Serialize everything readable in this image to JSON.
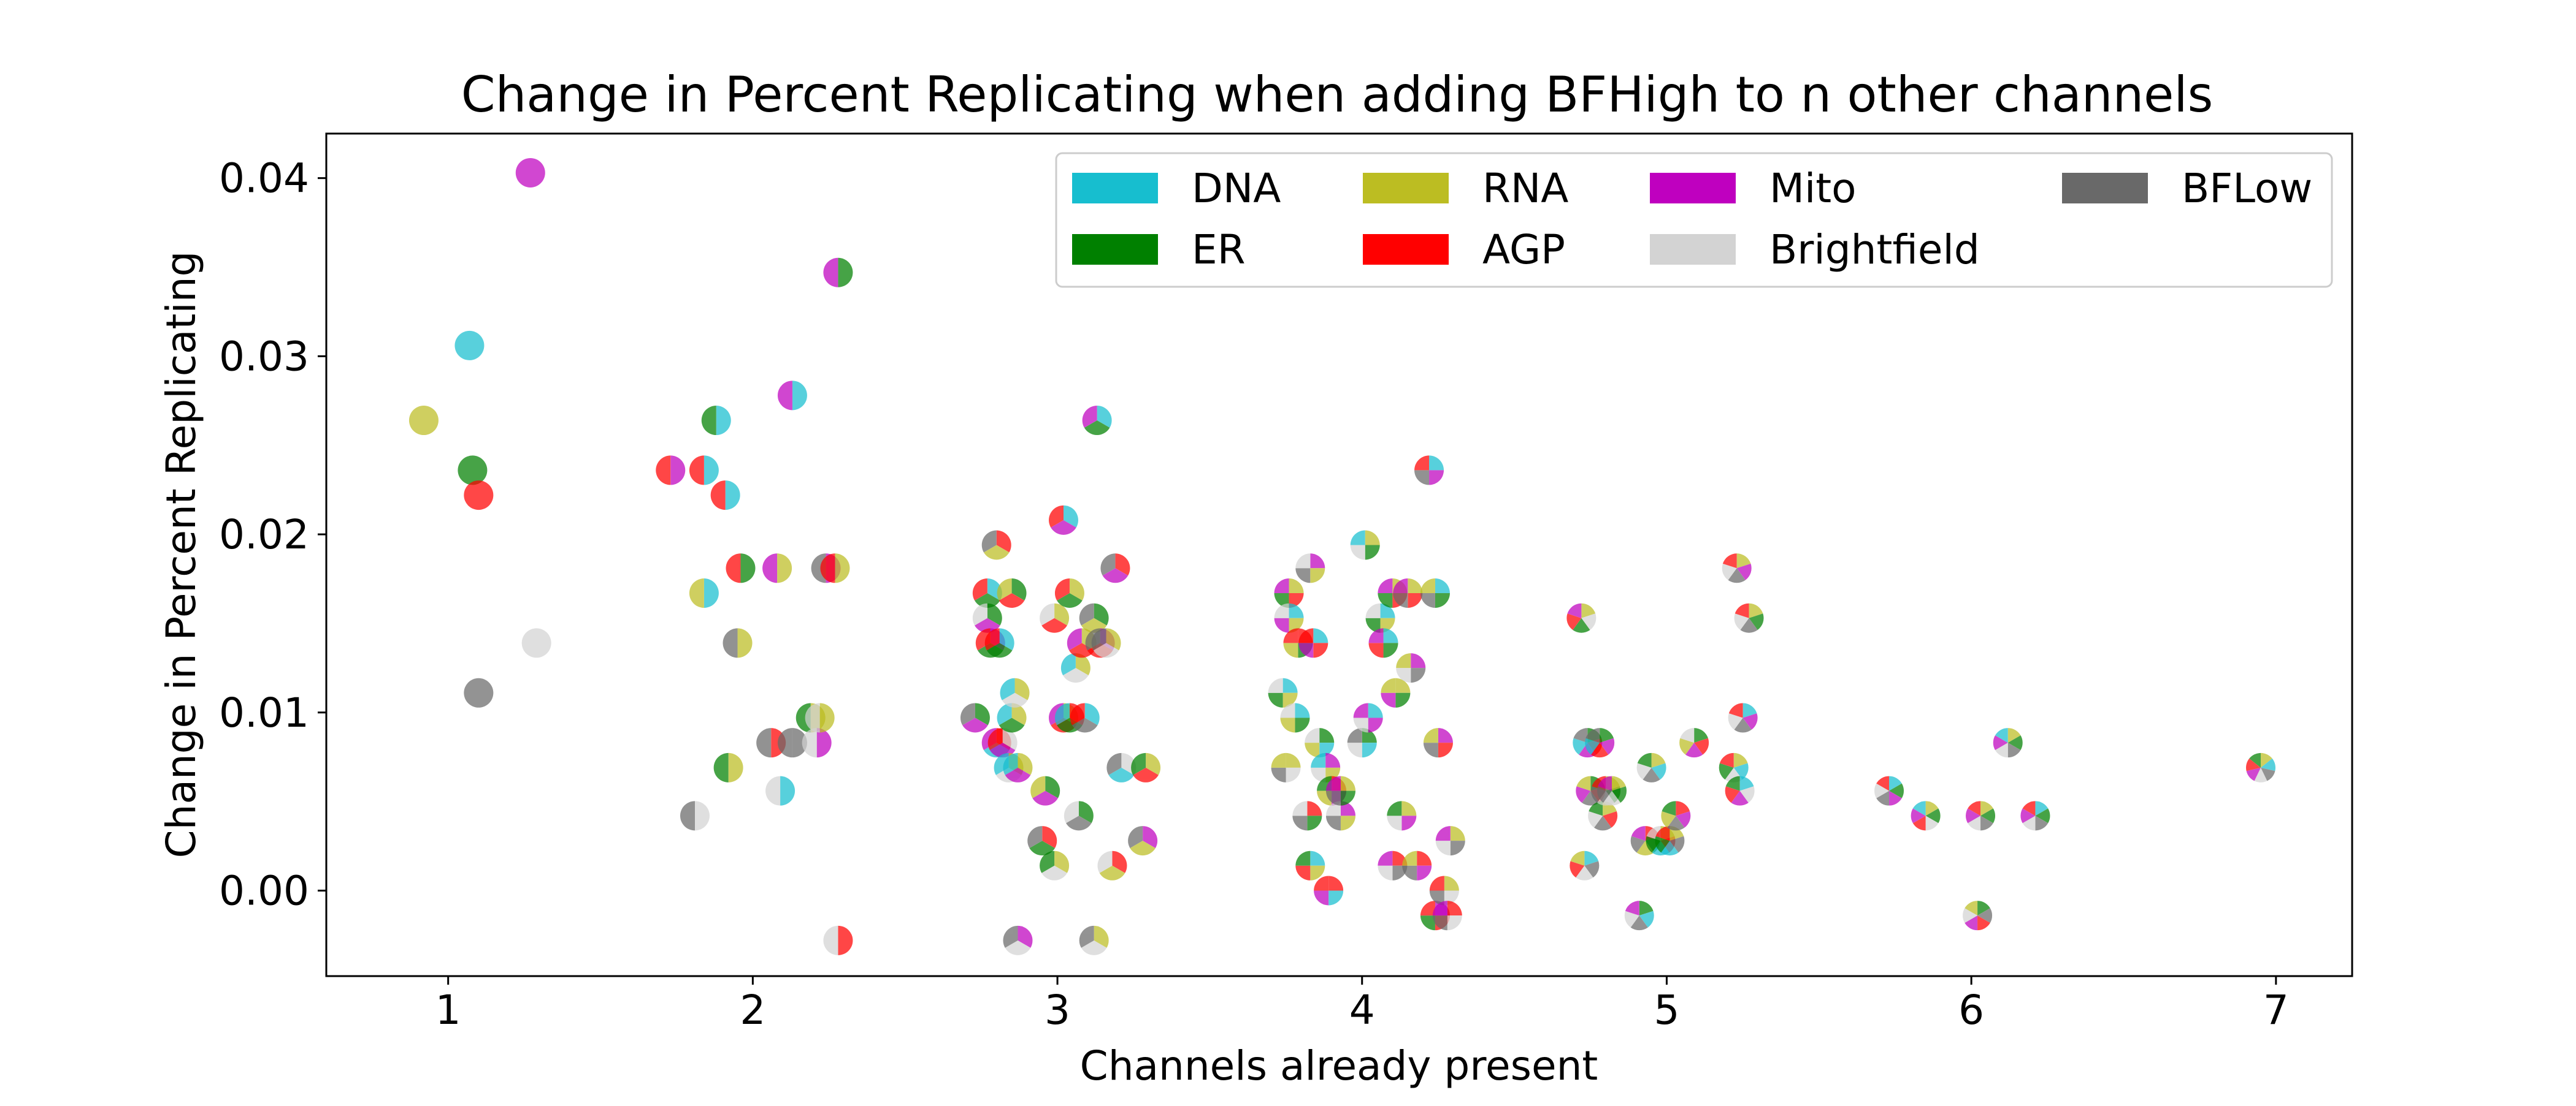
{
  "chart_data": {
    "type": "scatter",
    "title": "Change in Percent Replicating when adding BFHigh to n other channels",
    "xlabel": "Channels already present",
    "ylabel": "Change in Percent Replicating",
    "xlim": [
      0.6,
      7.25
    ],
    "ylim": [
      -0.0048,
      0.0425
    ],
    "xticks": [
      1,
      2,
      3,
      4,
      5,
      6,
      7
    ],
    "yticks": [
      0.0,
      0.01,
      0.02,
      0.03,
      0.04
    ],
    "xtick_labels": [
      "1",
      "2",
      "3",
      "4",
      "5",
      "6",
      "7"
    ],
    "ytick_labels": [
      "0.00",
      "0.01",
      "0.02",
      "0.03",
      "0.04"
    ],
    "grid": false,
    "legend_position": "top-right",
    "channels": [
      {
        "name": "DNA",
        "color": "#17becf"
      },
      {
        "name": "ER",
        "color": "#008000"
      },
      {
        "name": "RNA",
        "color": "#bcbd22"
      },
      {
        "name": "AGP",
        "color": "#ff0000"
      },
      {
        "name": "Mito",
        "color": "#bf00bf"
      },
      {
        "name": "Brightfield",
        "color": "#d3d3d3"
      },
      {
        "name": "BFLow",
        "color": "#696969"
      }
    ],
    "legend": [
      "DNA",
      "RNA",
      "Mito",
      "BFLow",
      "ER",
      "AGP",
      "Brightfield"
    ],
    "points": [
      {
        "x": 0.92,
        "y": 0.0264,
        "c": [
          "RNA"
        ]
      },
      {
        "x": 1.07,
        "y": 0.0306,
        "c": [
          "DNA"
        ]
      },
      {
        "x": 1.08,
        "y": 0.0236,
        "c": [
          "ER"
        ]
      },
      {
        "x": 1.1,
        "y": 0.0222,
        "c": [
          "AGP"
        ]
      },
      {
        "x": 1.1,
        "y": 0.0111,
        "c": [
          "BFLow"
        ]
      },
      {
        "x": 1.27,
        "y": 0.0403,
        "c": [
          "Mito"
        ]
      },
      {
        "x": 1.29,
        "y": 0.0139,
        "c": [
          "Brightfield"
        ]
      },
      {
        "x": 1.73,
        "y": 0.0236,
        "c": [
          "Mito",
          "AGP"
        ]
      },
      {
        "x": 1.81,
        "y": 0.0042,
        "c": [
          "Brightfield",
          "BFLow"
        ]
      },
      {
        "x": 1.84,
        "y": 0.0236,
        "c": [
          "DNA",
          "AGP"
        ]
      },
      {
        "x": 1.84,
        "y": 0.0167,
        "c": [
          "DNA",
          "RNA"
        ]
      },
      {
        "x": 1.88,
        "y": 0.0264,
        "c": [
          "DNA",
          "ER"
        ]
      },
      {
        "x": 1.91,
        "y": 0.0222,
        "c": [
          "DNA",
          "AGP"
        ]
      },
      {
        "x": 1.92,
        "y": 0.0069,
        "c": [
          "RNA",
          "ER"
        ]
      },
      {
        "x": 1.95,
        "y": 0.0139,
        "c": [
          "RNA",
          "BFLow"
        ]
      },
      {
        "x": 1.96,
        "y": 0.0181,
        "c": [
          "ER",
          "AGP"
        ]
      },
      {
        "x": 2.06,
        "y": 0.0083,
        "c": [
          "AGP",
          "BFLow"
        ]
      },
      {
        "x": 2.08,
        "y": 0.0181,
        "c": [
          "RNA",
          "Mito"
        ]
      },
      {
        "x": 2.09,
        "y": 0.0056,
        "c": [
          "DNA",
          "Brightfield"
        ]
      },
      {
        "x": 2.13,
        "y": 0.0083,
        "c": [
          "BFLow",
          "BFLow"
        ]
      },
      {
        "x": 2.13,
        "y": 0.0278,
        "c": [
          "DNA",
          "Mito"
        ]
      },
      {
        "x": 2.19,
        "y": 0.0097,
        "c": [
          "RNA",
          "ER"
        ]
      },
      {
        "x": 2.21,
        "y": 0.0083,
        "c": [
          "Mito",
          "Brightfield"
        ]
      },
      {
        "x": 2.22,
        "y": 0.0097,
        "c": [
          "RNA",
          "Brightfield"
        ]
      },
      {
        "x": 2.24,
        "y": 0.0181,
        "c": [
          "Mito",
          "BFLow"
        ]
      },
      {
        "x": 2.27,
        "y": 0.0181,
        "c": [
          "RNA",
          "AGP"
        ]
      },
      {
        "x": 2.28,
        "y": 0.0347,
        "c": [
          "ER",
          "Mito"
        ]
      },
      {
        "x": 2.28,
        "y": -0.0028,
        "c": [
          "AGP",
          "Brightfield"
        ]
      },
      {
        "x": 2.73,
        "y": 0.0097,
        "c": [
          "ER",
          "Mito",
          "BFLow"
        ]
      },
      {
        "x": 2.77,
        "y": 0.0167,
        "c": [
          "DNA",
          "ER",
          "AGP"
        ]
      },
      {
        "x": 2.77,
        "y": 0.0153,
        "c": [
          "ER",
          "Mito",
          "Brightfield"
        ]
      },
      {
        "x": 2.78,
        "y": 0.0139,
        "c": [
          "Mito",
          "ER",
          "AGP"
        ]
      },
      {
        "x": 2.8,
        "y": 0.0194,
        "c": [
          "AGP",
          "RNA",
          "BFLow"
        ]
      },
      {
        "x": 2.8,
        "y": 0.0083,
        "c": [
          "AGP",
          "DNA",
          "Mito"
        ]
      },
      {
        "x": 2.81,
        "y": 0.0139,
        "c": [
          "DNA",
          "ER",
          "AGP"
        ]
      },
      {
        "x": 2.82,
        "y": 0.0083,
        "c": [
          "Brightfield",
          "Mito",
          "AGP"
        ]
      },
      {
        "x": 2.84,
        "y": 0.0069,
        "c": [
          "RNA",
          "Brightfield",
          "DNA"
        ]
      },
      {
        "x": 2.85,
        "y": 0.0167,
        "c": [
          "ER",
          "AGP",
          "RNA"
        ]
      },
      {
        "x": 2.85,
        "y": 0.0097,
        "c": [
          "RNA",
          "ER",
          "DNA"
        ]
      },
      {
        "x": 2.86,
        "y": 0.0111,
        "c": [
          "RNA",
          "Brightfield",
          "DNA"
        ]
      },
      {
        "x": 2.87,
        "y": -0.0028,
        "c": [
          "Mito",
          "Brightfield",
          "BFLow"
        ]
      },
      {
        "x": 2.87,
        "y": 0.0069,
        "c": [
          "RNA",
          "Mito",
          "DNA"
        ]
      },
      {
        "x": 2.95,
        "y": 0.0028,
        "c": [
          "AGP",
          "ER",
          "BFLow"
        ]
      },
      {
        "x": 2.96,
        "y": 0.0056,
        "c": [
          "ER",
          "Mito",
          "RNA"
        ]
      },
      {
        "x": 2.99,
        "y": 0.0153,
        "c": [
          "RNA",
          "AGP",
          "Brightfield"
        ]
      },
      {
        "x": 2.99,
        "y": 0.0014,
        "c": [
          "RNA",
          "Brightfield",
          "ER"
        ]
      },
      {
        "x": 3.02,
        "y": 0.0097,
        "c": [
          "RNA",
          "AGP",
          "Mito"
        ]
      },
      {
        "x": 3.02,
        "y": 0.0208,
        "c": [
          "DNA",
          "Mito",
          "AGP"
        ]
      },
      {
        "x": 3.04,
        "y": 0.0167,
        "c": [
          "RNA",
          "ER",
          "AGP"
        ]
      },
      {
        "x": 3.04,
        "y": 0.0097,
        "c": [
          "AGP",
          "ER",
          "DNA"
        ]
      },
      {
        "x": 3.06,
        "y": 0.0125,
        "c": [
          "RNA",
          "Brightfield",
          "DNA"
        ]
      },
      {
        "x": 3.07,
        "y": 0.0042,
        "c": [
          "ER",
          "BFLow",
          "Brightfield"
        ]
      },
      {
        "x": 3.08,
        "y": 0.0139,
        "c": [
          "RNA",
          "AGP",
          "Mito"
        ]
      },
      {
        "x": 3.09,
        "y": 0.0097,
        "c": [
          "DNA",
          "BFLow",
          "AGP"
        ]
      },
      {
        "x": 3.12,
        "y": 0.0153,
        "c": [
          "ER",
          "RNA",
          "BFLow"
        ]
      },
      {
        "x": 3.12,
        "y": -0.0028,
        "c": [
          "RNA",
          "Brightfield",
          "BFLow"
        ]
      },
      {
        "x": 3.13,
        "y": 0.0264,
        "c": [
          "DNA",
          "ER",
          "Mito"
        ]
      },
      {
        "x": 3.14,
        "y": 0.0139,
        "c": [
          "Mito",
          "AGP",
          "BFLow"
        ]
      },
      {
        "x": 3.16,
        "y": 0.0139,
        "c": [
          "RNA",
          "Brightfield",
          "BFLow"
        ]
      },
      {
        "x": 3.18,
        "y": 0.0014,
        "c": [
          "AGP",
          "RNA",
          "Brightfield"
        ]
      },
      {
        "x": 3.19,
        "y": 0.0181,
        "c": [
          "AGP",
          "Mito",
          "BFLow"
        ]
      },
      {
        "x": 3.21,
        "y": 0.0069,
        "c": [
          "Brightfield",
          "DNA",
          "BFLow"
        ]
      },
      {
        "x": 3.28,
        "y": 0.0028,
        "c": [
          "Mito",
          "RNA",
          "BFLow"
        ]
      },
      {
        "x": 3.29,
        "y": 0.0069,
        "c": [
          "RNA",
          "AGP",
          "ER"
        ]
      },
      {
        "x": 3.74,
        "y": 0.0111,
        "c": [
          "DNA",
          "RNA",
          "ER",
          "Brightfield"
        ]
      },
      {
        "x": 3.75,
        "y": 0.0069,
        "c": [
          "RNA",
          "Brightfield",
          "BFLow",
          "RNA"
        ]
      },
      {
        "x": 3.76,
        "y": 0.0167,
        "c": [
          "RNA",
          "AGP",
          "ER",
          "Mito"
        ]
      },
      {
        "x": 3.76,
        "y": 0.0153,
        "c": [
          "DNA",
          "RNA",
          "Mito",
          "Brightfield"
        ]
      },
      {
        "x": 3.78,
        "y": 0.0097,
        "c": [
          "DNA",
          "ER",
          "RNA",
          "Brightfield"
        ]
      },
      {
        "x": 3.79,
        "y": 0.0139,
        "c": [
          "AGP",
          "ER",
          "RNA",
          "AGP"
        ]
      },
      {
        "x": 3.82,
        "y": 0.0042,
        "c": [
          "AGP",
          "ER",
          "BFLow",
          "Brightfield"
        ]
      },
      {
        "x": 3.83,
        "y": 0.0014,
        "c": [
          "DNA",
          "RNA",
          "AGP",
          "ER"
        ]
      },
      {
        "x": 3.83,
        "y": 0.0181,
        "c": [
          "Mito",
          "RNA",
          "BFLow",
          "Brightfield"
        ]
      },
      {
        "x": 3.84,
        "y": 0.0139,
        "c": [
          "DNA",
          "AGP",
          "Mito",
          "AGP"
        ]
      },
      {
        "x": 3.86,
        "y": 0.0083,
        "c": [
          "ER",
          "DNA",
          "RNA",
          "Brightfield"
        ]
      },
      {
        "x": 3.88,
        "y": 0.0069,
        "c": [
          "Mito",
          "RNA",
          "Brightfield",
          "DNA"
        ]
      },
      {
        "x": 3.89,
        "y": 0.0,
        "c": [
          "AGP",
          "DNA",
          "Mito",
          "AGP"
        ]
      },
      {
        "x": 3.9,
        "y": 0.0056,
        "c": [
          "AGP",
          "Mito",
          "RNA",
          "ER"
        ]
      },
      {
        "x": 3.93,
        "y": 0.0042,
        "c": [
          "Mito",
          "RNA",
          "BFLow",
          "Brightfield"
        ]
      },
      {
        "x": 3.93,
        "y": 0.0056,
        "c": [
          "RNA",
          "ER",
          "BFLow",
          "Mito"
        ]
      },
      {
        "x": 4.0,
        "y": 0.0083,
        "c": [
          "ER",
          "DNA",
          "Brightfield",
          "BFLow"
        ]
      },
      {
        "x": 4.01,
        "y": 0.0194,
        "c": [
          "RNA",
          "ER",
          "Brightfield",
          "DNA"
        ]
      },
      {
        "x": 4.02,
        "y": 0.0097,
        "c": [
          "DNA",
          "Mito",
          "Brightfield",
          "Mito"
        ]
      },
      {
        "x": 4.06,
        "y": 0.0153,
        "c": [
          "DNA",
          "RNA",
          "ER",
          "Brightfield"
        ]
      },
      {
        "x": 4.07,
        "y": 0.0139,
        "c": [
          "DNA",
          "ER",
          "AGP",
          "Mito"
        ]
      },
      {
        "x": 4.1,
        "y": 0.0167,
        "c": [
          "RNA",
          "AGP",
          "ER",
          "Mito"
        ]
      },
      {
        "x": 4.1,
        "y": 0.0014,
        "c": [
          "AGP",
          "BFLow",
          "Brightfield",
          "Mito"
        ]
      },
      {
        "x": 4.11,
        "y": 0.0111,
        "c": [
          "RNA",
          "ER",
          "Mito",
          "RNA"
        ]
      },
      {
        "x": 4.13,
        "y": 0.0042,
        "c": [
          "RNA",
          "Mito",
          "Brightfield",
          "ER"
        ]
      },
      {
        "x": 4.15,
        "y": 0.0167,
        "c": [
          "RNA",
          "AGP",
          "BFLow",
          "Mito"
        ]
      },
      {
        "x": 4.16,
        "y": 0.0125,
        "c": [
          "Mito",
          "BFLow",
          "Brightfield",
          "RNA"
        ]
      },
      {
        "x": 4.18,
        "y": 0.0014,
        "c": [
          "AGP",
          "Mito",
          "BFLow",
          "RNA"
        ]
      },
      {
        "x": 4.22,
        "y": 0.0236,
        "c": [
          "DNA",
          "Mito",
          "BFLow",
          "AGP"
        ]
      },
      {
        "x": 4.24,
        "y": 0.0167,
        "c": [
          "DNA",
          "ER",
          "BFLow",
          "RNA"
        ]
      },
      {
        "x": 4.24,
        "y": -0.0014,
        "c": [
          "Mito",
          "AGP",
          "ER",
          "AGP"
        ]
      },
      {
        "x": 4.25,
        "y": 0.0083,
        "c": [
          "Mito",
          "AGP",
          "BFLow",
          "RNA"
        ]
      },
      {
        "x": 4.27,
        "y": 0.0,
        "c": [
          "RNA",
          "Brightfield",
          "BFLow",
          "AGP"
        ]
      },
      {
        "x": 4.28,
        "y": -0.0014,
        "c": [
          "AGP",
          "Brightfield",
          "BFLow",
          "Mito"
        ]
      },
      {
        "x": 4.29,
        "y": 0.0028,
        "c": [
          "RNA",
          "BFLow",
          "Brightfield",
          "Mito"
        ]
      },
      {
        "x": 4.72,
        "y": 0.0153,
        "c": [
          "RNA",
          "Brightfield",
          "ER",
          "AGP",
          "Mito"
        ]
      },
      {
        "x": 4.73,
        "y": 0.0014,
        "c": [
          "DNA",
          "BFLow",
          "Brightfield",
          "AGP",
          "RNA"
        ]
      },
      {
        "x": 4.74,
        "y": 0.0083,
        "c": [
          "ER",
          "AGP",
          "Mito",
          "DNA",
          "BFLow"
        ]
      },
      {
        "x": 4.75,
        "y": 0.0056,
        "c": [
          "ER",
          "AGP",
          "BFLow",
          "Mito",
          "RNA"
        ]
      },
      {
        "x": 4.78,
        "y": 0.0083,
        "c": [
          "ER",
          "Mito",
          "AGP",
          "DNA",
          "BFLow"
        ]
      },
      {
        "x": 4.79,
        "y": 0.0042,
        "c": [
          "RNA",
          "AGP",
          "BFLow",
          "Brightfield",
          "ER"
        ]
      },
      {
        "x": 4.8,
        "y": 0.0056,
        "c": [
          "RNA",
          "ER",
          "Brightfield",
          "BFLow",
          "AGP"
        ]
      },
      {
        "x": 4.82,
        "y": 0.0056,
        "c": [
          "RNA",
          "ER",
          "Brightfield",
          "BFLow",
          "Mito"
        ]
      },
      {
        "x": 4.91,
        "y": -0.0014,
        "c": [
          "ER",
          "DNA",
          "BFLow",
          "Brightfield",
          "Mito"
        ]
      },
      {
        "x": 4.93,
        "y": 0.0028,
        "c": [
          "AGP",
          "ER",
          "RNA",
          "BFLow",
          "Mito"
        ]
      },
      {
        "x": 4.95,
        "y": 0.0069,
        "c": [
          "RNA",
          "DNA",
          "BFLow",
          "Brightfield",
          "ER"
        ]
      },
      {
        "x": 4.98,
        "y": 0.0028,
        "c": [
          "RNA",
          "AGP",
          "DNA",
          "ER",
          "Brightfield"
        ]
      },
      {
        "x": 5.01,
        "y": 0.0028,
        "c": [
          "RNA",
          "BFLow",
          "DNA",
          "ER",
          "AGP"
        ]
      },
      {
        "x": 5.03,
        "y": 0.0042,
        "c": [
          "AGP",
          "Mito",
          "BFLow",
          "RNA",
          "ER"
        ]
      },
      {
        "x": 5.09,
        "y": 0.0083,
        "c": [
          "ER",
          "AGP",
          "Mito",
          "RNA",
          "Brightfield"
        ]
      },
      {
        "x": 5.22,
        "y": 0.0069,
        "c": [
          "RNA",
          "DNA",
          "Brightfield",
          "ER",
          "AGP"
        ]
      },
      {
        "x": 5.23,
        "y": 0.0181,
        "c": [
          "RNA",
          "Mito",
          "BFLow",
          "Brightfield",
          "AGP"
        ]
      },
      {
        "x": 5.24,
        "y": 0.0056,
        "c": [
          "DNA",
          "Brightfield",
          "Mito",
          "AGP",
          "ER"
        ]
      },
      {
        "x": 5.25,
        "y": 0.0097,
        "c": [
          "DNA",
          "Mito",
          "BFLow",
          "Brightfield",
          "AGP"
        ]
      },
      {
        "x": 5.27,
        "y": 0.0153,
        "c": [
          "RNA",
          "ER",
          "BFLow",
          "Brightfield",
          "AGP"
        ]
      },
      {
        "x": 5.73,
        "y": 0.0056,
        "c": [
          "DNA",
          "ER",
          "Mito",
          "BFLow",
          "Brightfield",
          "AGP"
        ]
      },
      {
        "x": 5.85,
        "y": 0.0042,
        "c": [
          "RNA",
          "ER",
          "Brightfield",
          "AGP",
          "Mito",
          "DNA"
        ]
      },
      {
        "x": 6.02,
        "y": -0.0014,
        "c": [
          "ER",
          "BFLow",
          "AGP",
          "Mito",
          "Brightfield",
          "RNA"
        ]
      },
      {
        "x": 6.03,
        "y": 0.0042,
        "c": [
          "RNA",
          "ER",
          "BFLow",
          "Brightfield",
          "Mito",
          "AGP"
        ]
      },
      {
        "x": 6.12,
        "y": 0.0083,
        "c": [
          "RNA",
          "ER",
          "BFLow",
          "Brightfield",
          "Mito",
          "DNA"
        ]
      },
      {
        "x": 6.21,
        "y": 0.0042,
        "c": [
          "DNA",
          "ER",
          "BFLow",
          "Brightfield",
          "Mito",
          "AGP"
        ]
      },
      {
        "x": 6.95,
        "y": 0.0069,
        "c": [
          "RNA",
          "DNA",
          "BFLow",
          "Brightfield",
          "Mito",
          "AGP",
          "ER"
        ]
      }
    ]
  }
}
